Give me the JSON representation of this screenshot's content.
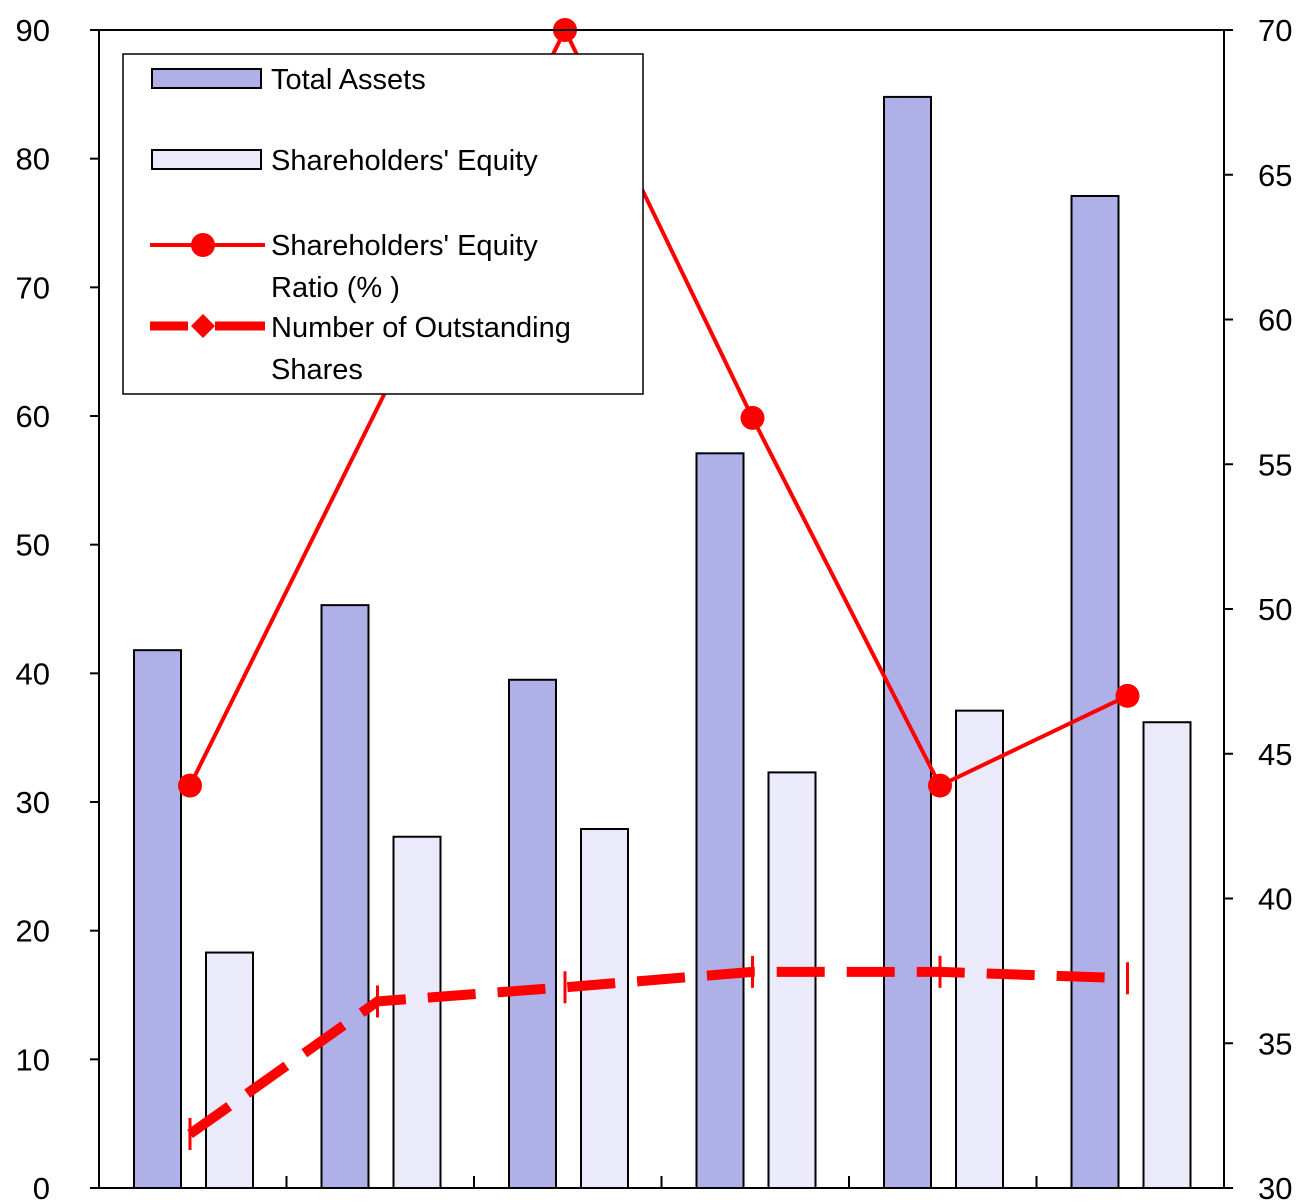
{
  "chart_data": {
    "type": "bar",
    "categories": [
      "",
      "",
      "",
      "",
      "",
      ""
    ],
    "title": "",
    "xlabel": "",
    "ylabel": "",
    "y2label": "",
    "ylim": [
      0,
      90
    ],
    "y2lim": [
      30,
      70
    ],
    "yticks": [
      "0",
      "10",
      "20",
      "30",
      "40",
      "50",
      "60",
      "70",
      "80",
      "90"
    ],
    "y2ticks": [
      "30",
      "35",
      "40",
      "45",
      "50",
      "55",
      "60",
      "65",
      "70"
    ],
    "grid": false,
    "legend_position": "top-left",
    "bar_series": [
      {
        "name": "Total Assets",
        "values": [
          41.8,
          45.3,
          39.5,
          57.1,
          84.8,
          77.1
        ],
        "color": "#b0b0e8",
        "axis": "left"
      },
      {
        "name": "Shareholders' Equity",
        "values": [
          18.3,
          27.3,
          27.9,
          32.3,
          37.1,
          36.2
        ],
        "color": "#eaeafa",
        "axis": "left"
      }
    ],
    "line_series": [
      {
        "name": "Shareholders' Equity Ratio (%)",
        "legend_lines": [
          "Shareholders' Equity",
          "Ratio (% )"
        ],
        "values": [
          43.9,
          null,
          70.0,
          56.6,
          43.9,
          47.0
        ],
        "color": "#ff0000",
        "style": "solid",
        "marker": "circle",
        "axis": "right"
      },
      {
        "name": "Number of Outstanding Shares",
        "legend_lines": [
          "Number of Outstanding",
          "Shares"
        ],
        "values": [
          4.2,
          14.5,
          15.6,
          16.8,
          16.8,
          16.3
        ],
        "color": "#ff0000",
        "style": "dashed",
        "marker": "diamond",
        "axis": "left"
      }
    ]
  }
}
